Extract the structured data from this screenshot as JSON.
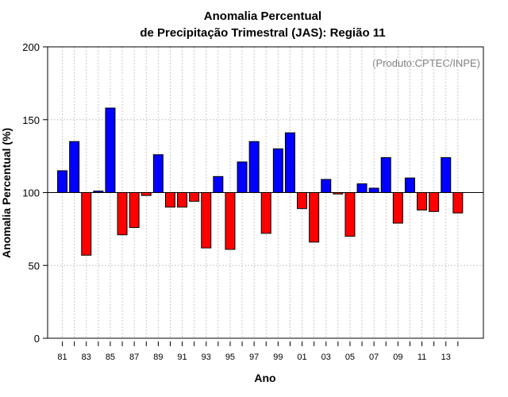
{
  "chart_data": {
    "type": "bar",
    "title_line1": "Anomalia Percentual",
    "title_line2": "de Precipitação Trimestral (JAS): Região 11",
    "xlabel": "Ano",
    "ylabel": "Anomalia Percentual (%)",
    "credit": "(Produto:CPTEC/INPE)",
    "baseline": 100,
    "ylim": [
      0,
      200
    ],
    "yticks": [
      0,
      50,
      100,
      150,
      200
    ],
    "xtick_labels": [
      "81",
      "83",
      "85",
      "87",
      "89",
      "91",
      "93",
      "95",
      "97",
      "99",
      "01",
      "03",
      "05",
      "07",
      "09",
      "11",
      "13"
    ],
    "grid": true,
    "colors": {
      "above": "#0000ff",
      "below": "#ff0000"
    },
    "categories": [
      "1981",
      "1982",
      "1983",
      "1984",
      "1985",
      "1986",
      "1987",
      "1988",
      "1989",
      "1990",
      "1991",
      "1992",
      "1993",
      "1994",
      "1995",
      "1996",
      "1997",
      "1998",
      "1999",
      "2000",
      "2001",
      "2002",
      "2003",
      "2004",
      "2005",
      "2006",
      "2007",
      "2008",
      "2009",
      "2010",
      "2011",
      "2012",
      "2013",
      "2014"
    ],
    "values": [
      115,
      135,
      57,
      101,
      158,
      71,
      76,
      98,
      126,
      90,
      90,
      94,
      62,
      111,
      61,
      121,
      135,
      72,
      130,
      141,
      89,
      66,
      109,
      99,
      70,
      106,
      103,
      124,
      79,
      110,
      88,
      87,
      124,
      86
    ]
  }
}
